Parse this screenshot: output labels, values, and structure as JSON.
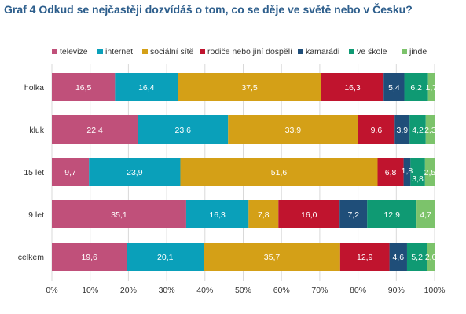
{
  "title": "Graf 4 Odkud se nejčastěji dozvídáš o tom, co se děje ve světě nebo v Česku?",
  "chart_data": {
    "type": "bar",
    "orientation": "horizontal",
    "stacked": "percent",
    "categories": [
      "holka",
      "kluk",
      "15 let",
      "9 let",
      "celkem"
    ],
    "series": [
      {
        "name": "televize",
        "color": "#c0507a",
        "values": [
          16.5,
          22.4,
          9.7,
          35.1,
          19.6
        ],
        "labels": [
          "16,5",
          "22,4",
          "9,7",
          "35,1",
          "19,6"
        ]
      },
      {
        "name": "internet",
        "color": "#0aa0ba",
        "values": [
          16.4,
          23.6,
          23.9,
          16.3,
          20.1
        ],
        "labels": [
          "16,4",
          "23,6",
          "23,9",
          "16,3",
          "20,1"
        ]
      },
      {
        "name": "sociální sítě",
        "color": "#d4a017",
        "values": [
          37.5,
          33.9,
          51.6,
          7.8,
          35.7
        ],
        "labels": [
          "37,5",
          "33,9",
          "51,6",
          "7,8",
          "35,7"
        ]
      },
      {
        "name": "rodiče nebo jiní dospělí",
        "color": "#c0142e",
        "values": [
          16.3,
          9.6,
          6.8,
          16.0,
          12.9
        ],
        "labels": [
          "16,3",
          "9,6",
          "6,8",
          "16,0",
          "12,9"
        ]
      },
      {
        "name": "kamarádi",
        "color": "#1f4e79",
        "values": [
          5.4,
          3.9,
          1.8,
          7.2,
          4.6
        ],
        "labels": [
          "5,4",
          "3,9",
          "1,8",
          "7,2",
          "4,6"
        ]
      },
      {
        "name": "ve škole",
        "color": "#0f9a73",
        "values": [
          6.2,
          4.2,
          3.8,
          12.9,
          5.2
        ],
        "labels": [
          "6,2",
          "4,2",
          "3,8",
          "12,9",
          "5,2"
        ]
      },
      {
        "name": "jinde",
        "color": "#7cc36b",
        "values": [
          1.7,
          2.3,
          2.5,
          4.7,
          2.0
        ],
        "labels": [
          "1,7",
          "2,3",
          "2,5",
          "4,7",
          "2,0"
        ]
      }
    ],
    "xticks": [
      "0%",
      "10%",
      "20%",
      "30%",
      "40%",
      "50%",
      "60%",
      "70%",
      "80%",
      "90%",
      "100%"
    ],
    "xlim": [
      0,
      100
    ],
    "grid": true,
    "legend": "top"
  }
}
